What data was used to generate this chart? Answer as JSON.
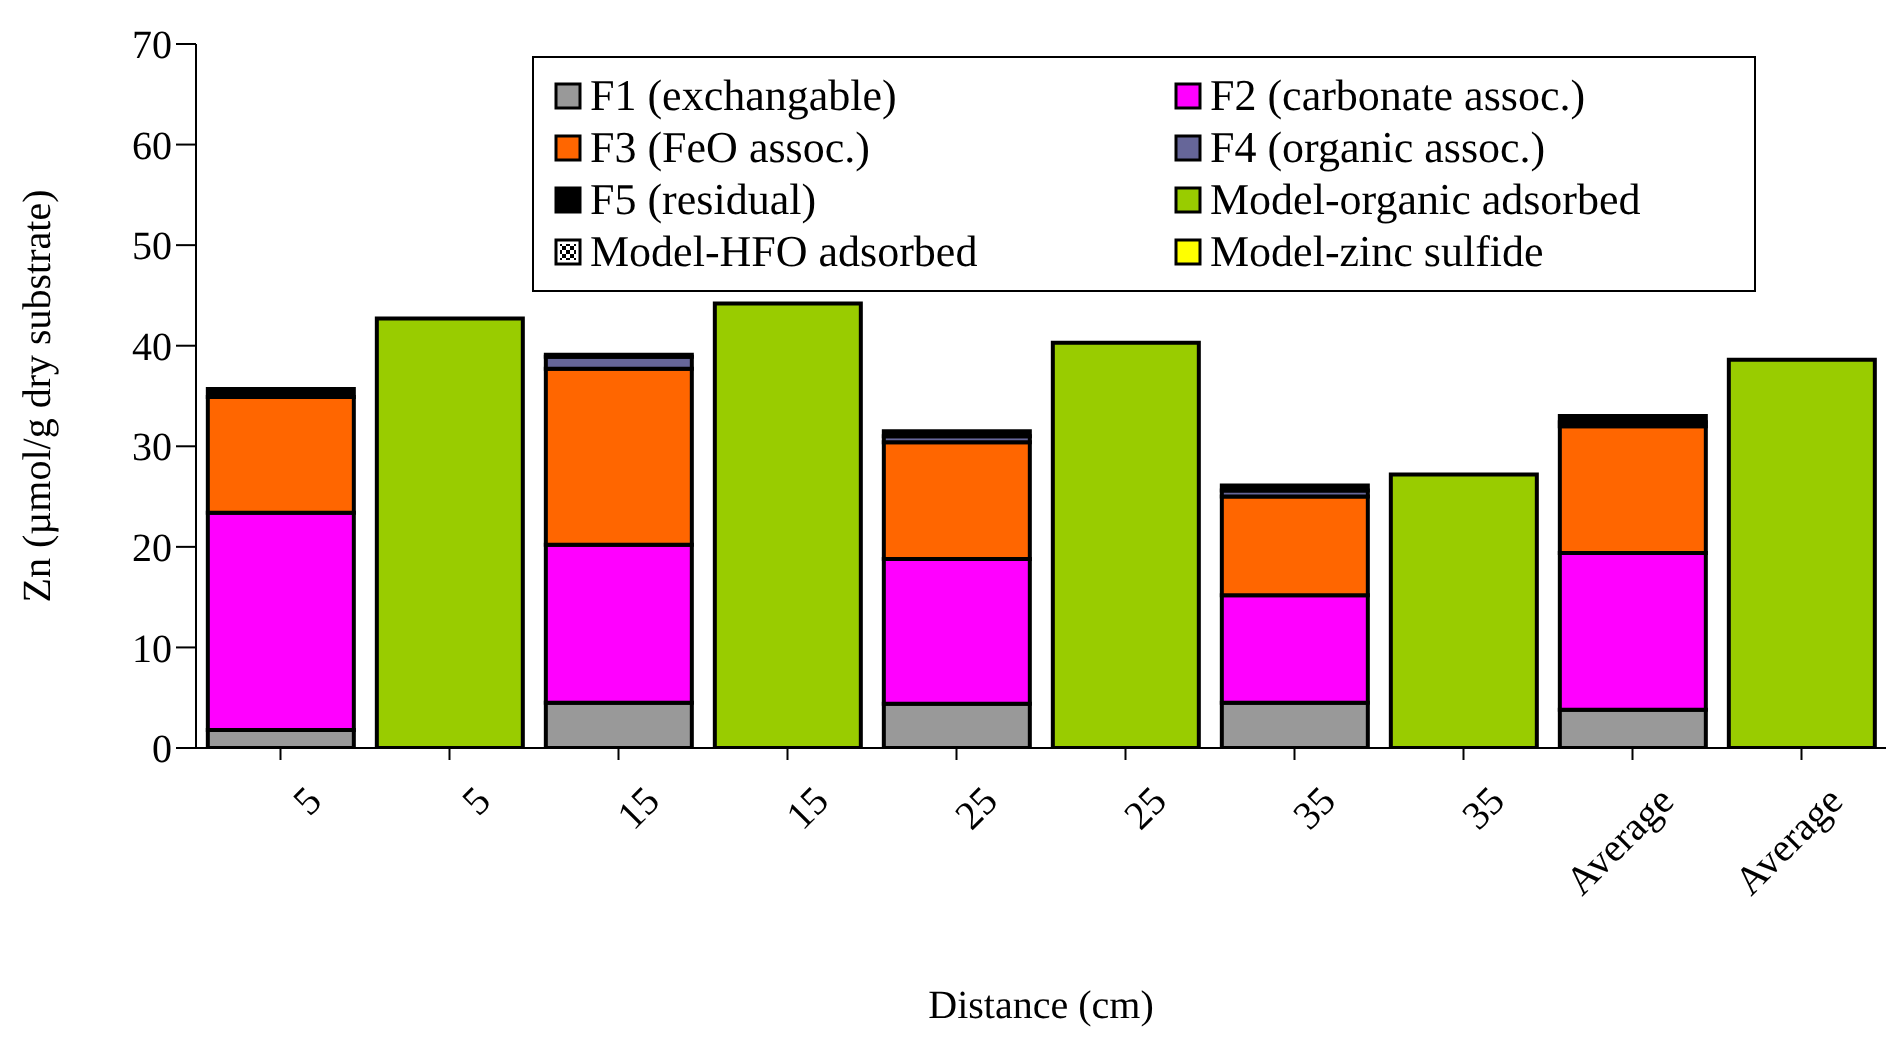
{
  "chart_data": {
    "type": "bar",
    "stacked": true,
    "xlabel": "Distance (cm)",
    "ylabel": "Zn (µmol/g dry substrate)",
    "categories": [
      "5",
      "5",
      "15",
      "15",
      "25",
      "25",
      "35",
      "35",
      "Average",
      "Average"
    ],
    "ylim": [
      0,
      70
    ],
    "yticks": [
      0,
      10,
      20,
      30,
      40,
      50,
      60,
      70
    ],
    "legend": "top",
    "series": [
      {
        "name": "F1 (exchangable)",
        "color": "#999999",
        "values": [
          1.8,
          null,
          4.5,
          null,
          4.4,
          null,
          4.5,
          null,
          3.8,
          null
        ]
      },
      {
        "name": "F2 (carbonate assoc.)",
        "color": "#ff00ff",
        "values": [
          21.6,
          null,
          15.7,
          null,
          14.4,
          null,
          10.7,
          null,
          15.6,
          null
        ]
      },
      {
        "name": "F3 (FeO assoc.)",
        "color": "#ff6600",
        "values": [
          11.5,
          null,
          17.5,
          null,
          11.6,
          null,
          9.8,
          null,
          12.6,
          null
        ]
      },
      {
        "name": "F4 (organic assoc.)",
        "color": "#666699",
        "values": [
          0,
          null,
          1.2,
          null,
          0.6,
          null,
          0.6,
          null,
          0.4,
          null
        ]
      },
      {
        "name": "F5 (residual)",
        "color": "#000000",
        "values": [
          0.8,
          null,
          0.2,
          null,
          0.5,
          null,
          0.5,
          null,
          0.6,
          null
        ]
      },
      {
        "name": "Model-organic adsorbed",
        "color": "#99cc00",
        "values": [
          null,
          42.7,
          null,
          44.2,
          null,
          40.3,
          null,
          27.2,
          null,
          38.6
        ]
      },
      {
        "name": "Model-HFO adsorbed",
        "color": "#ffffff",
        "values": [
          null,
          0,
          null,
          0,
          null,
          0,
          null,
          0,
          null,
          0
        ]
      },
      {
        "name": "Model-zinc sulfide",
        "color": "#ffff00",
        "values": [
          null,
          0,
          null,
          0,
          null,
          0,
          null,
          0,
          null,
          0
        ]
      }
    ]
  }
}
